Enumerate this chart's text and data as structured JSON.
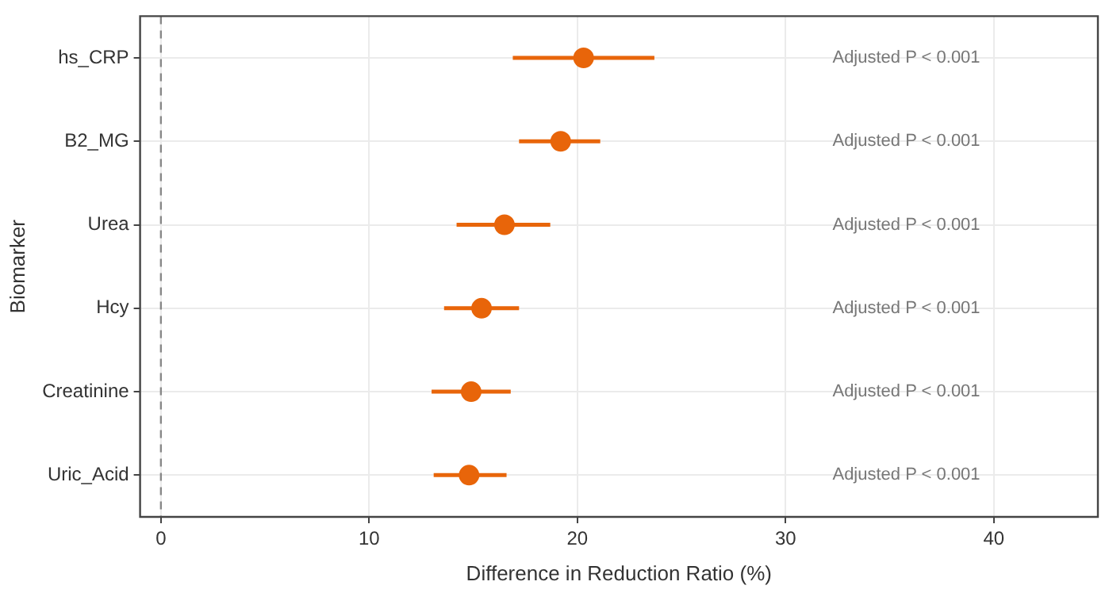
{
  "chart_data": {
    "type": "scatter",
    "orientation": "horizontal",
    "xlabel": "Difference in Reduction Ratio (%)",
    "ylabel": "Biomarker",
    "categories": [
      "hs_CRP",
      "B2_MG",
      "Urea",
      "Hcy",
      "Creatinine",
      "Uric_Acid"
    ],
    "values": [
      20.3,
      19.2,
      16.5,
      15.4,
      14.9,
      14.8
    ],
    "errors": [
      [
        16.9,
        23.7
      ],
      [
        17.2,
        21.1
      ],
      [
        14.2,
        18.7
      ],
      [
        13.6,
        17.2
      ],
      [
        13.0,
        16.8
      ],
      [
        13.1,
        16.6
      ]
    ],
    "color": "#e8650a",
    "marker": "circle",
    "xlim": [
      -1,
      45
    ],
    "xticks": [
      0,
      10,
      20,
      30,
      40
    ],
    "grid": true,
    "legend": false,
    "ref_lines": [
      {
        "axis": "x",
        "value": 0,
        "color": "#888888",
        "line_style": "dashed"
      }
    ],
    "annotations": [
      "Adjusted P < 0.001",
      "Adjusted P < 0.001",
      "Adjusted P < 0.001",
      "Adjusted P < 0.001",
      "Adjusted P < 0.001",
      "Adjusted P < 0.001"
    ]
  }
}
